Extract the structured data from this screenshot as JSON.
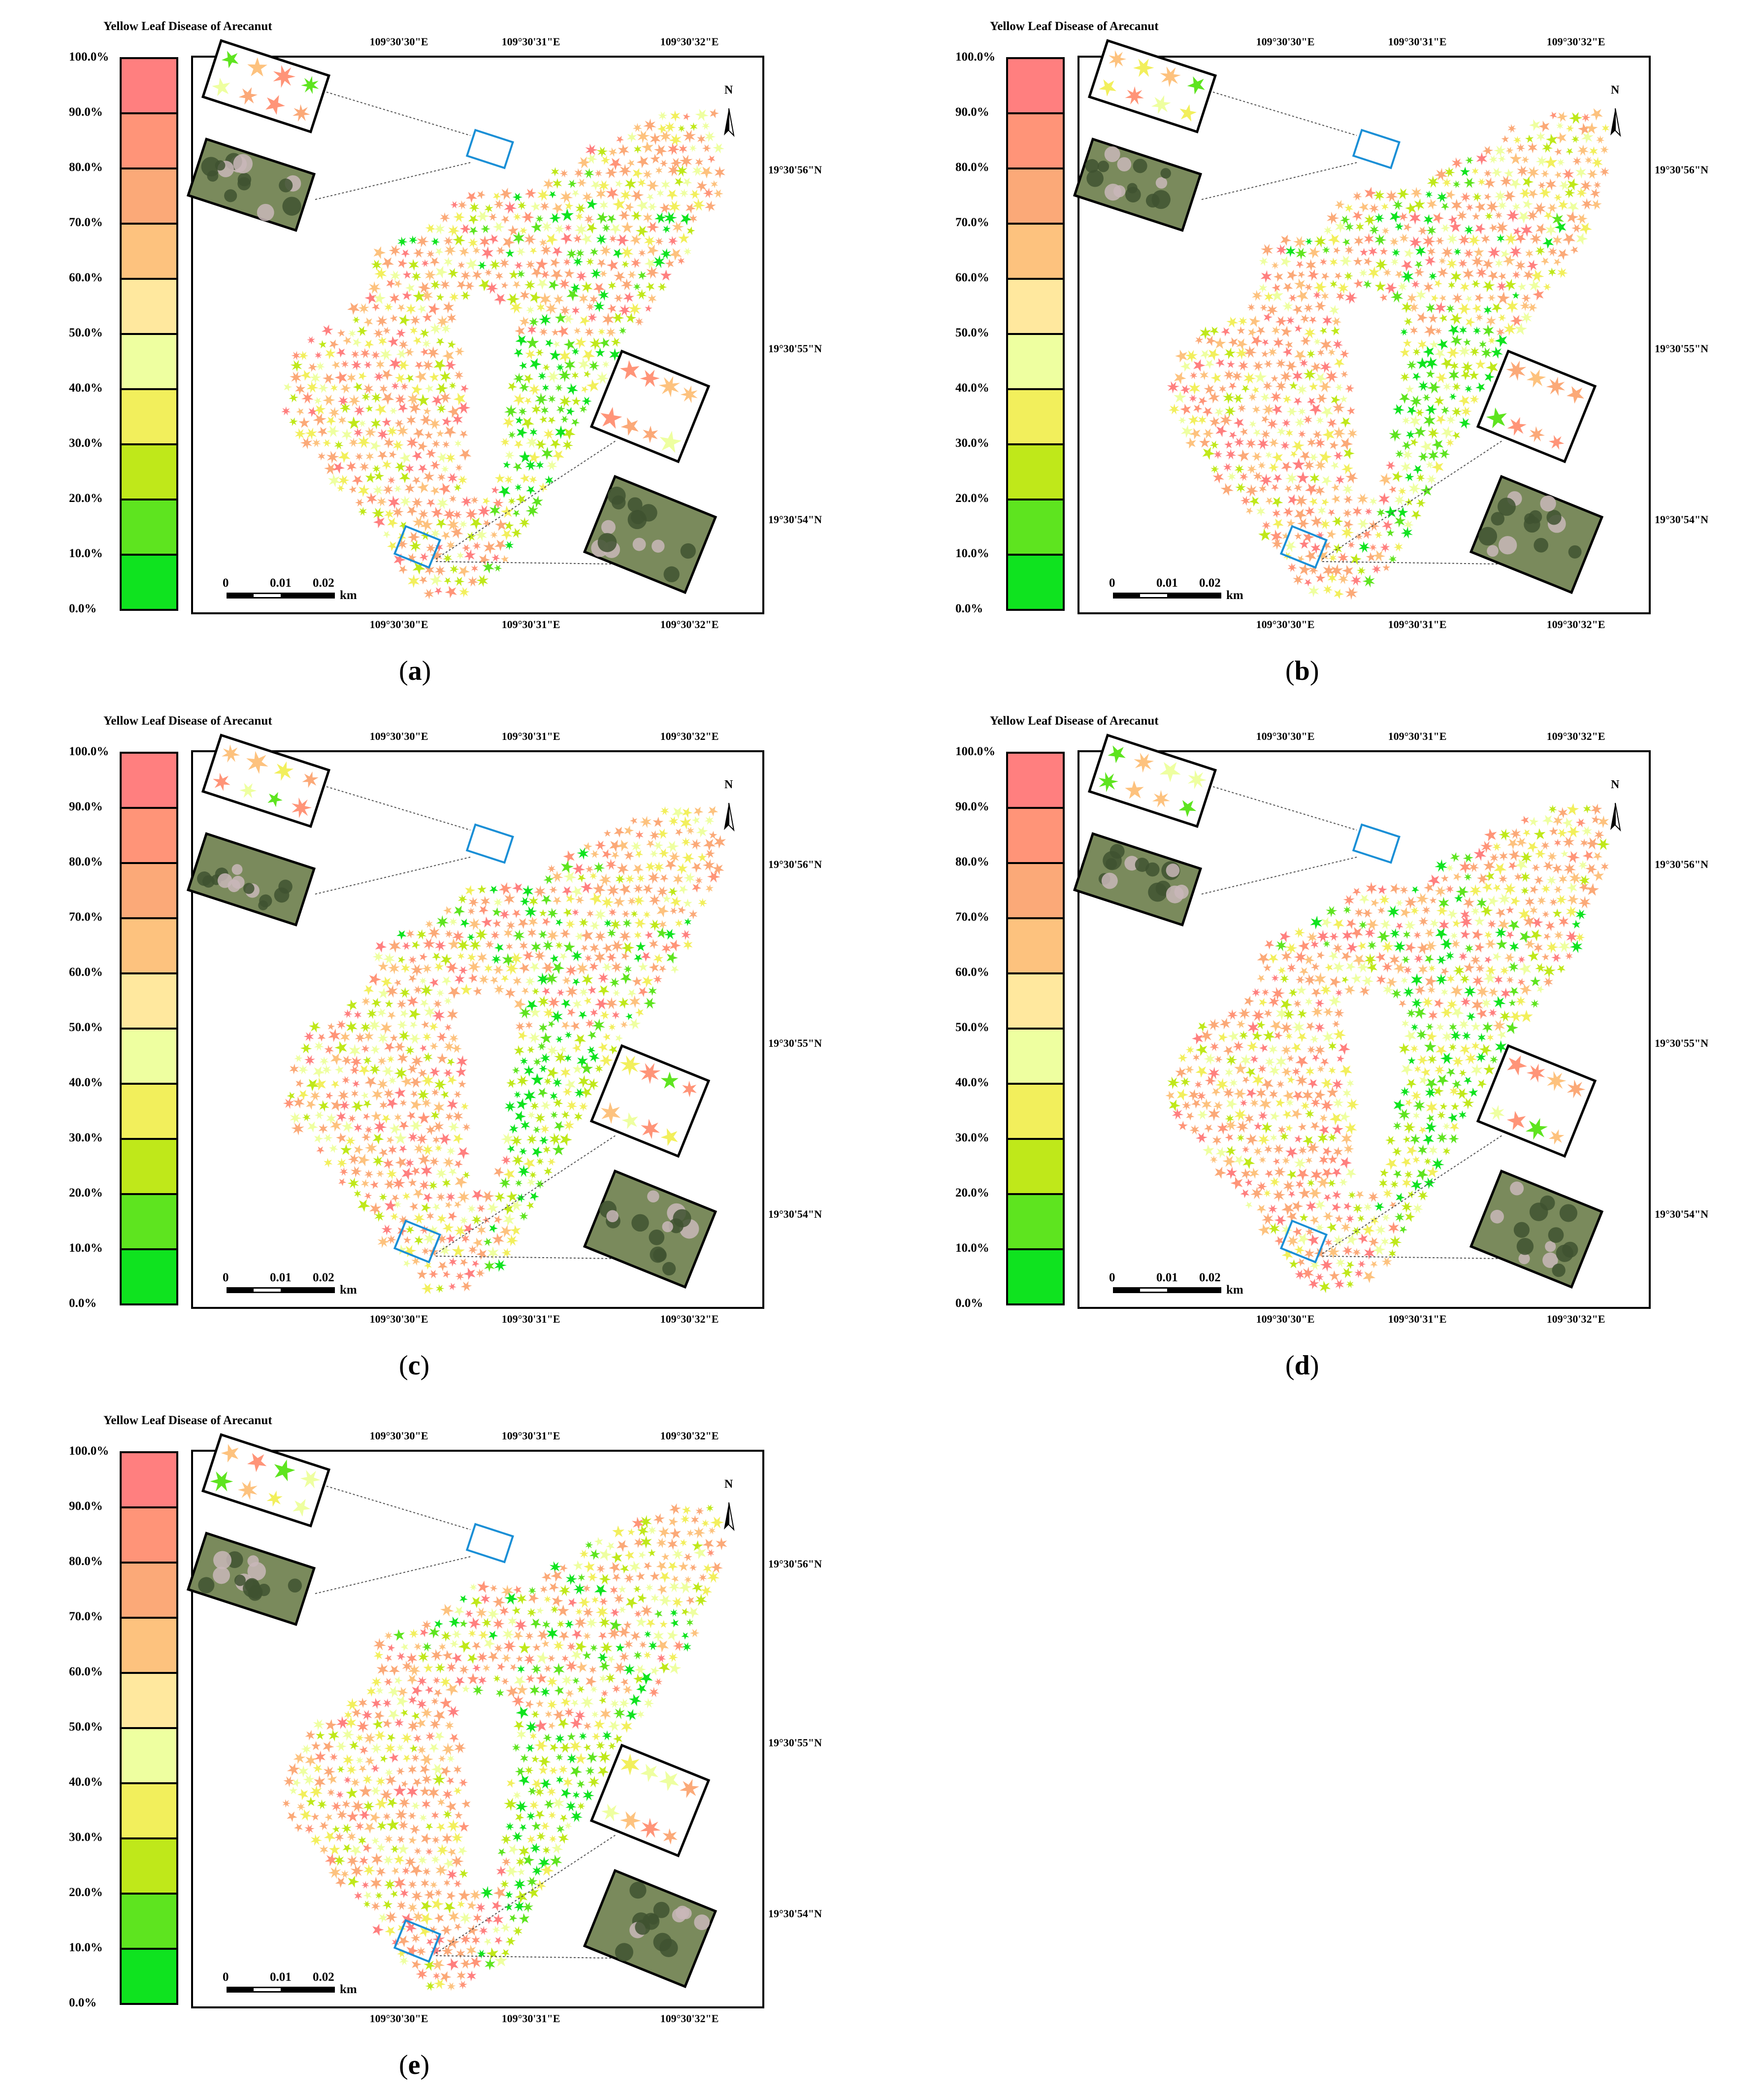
{
  "legend": {
    "title": "Yellow Leaf Disease of Arecanut",
    "ticks": [
      "100.0%",
      "90.0%",
      "80.0%",
      "70.0%",
      "60.0%",
      "50.0%",
      "40.0%",
      "30.0%",
      "20.0%",
      "10.0%",
      "0.0%"
    ],
    "class_colors": [
      "#ff7f7f",
      "#ff9478",
      "#fba978",
      "#fdc27e",
      "#ffe89e",
      "#eeffa0",
      "#f2ef5c",
      "#bfe81a",
      "#5ee41f",
      "#0fe31f"
    ]
  },
  "map_labels": {
    "longitudes": [
      "109°30'30\"E",
      "109°30'31\"E",
      "109°30'32\"E"
    ],
    "latitudes": [
      "19°30'56\"N",
      "19°30'55\"N",
      "19°30'54\"N"
    ],
    "north": "N",
    "scale": {
      "ticks": [
        "0",
        "0.01",
        "0.02"
      ],
      "unit": "km"
    }
  },
  "panels": [
    {
      "label": "a",
      "seed": 11
    },
    {
      "label": "b",
      "seed": 23
    },
    {
      "label": "c",
      "seed": 37
    },
    {
      "label": "d",
      "seed": 41
    },
    {
      "label": "e",
      "seed": 59
    }
  ],
  "colors": {
    "frame": "#000000",
    "highlight_box": "#1a8fd6",
    "photo_base": "#7a8a5c",
    "photo_dark": "#3f5230"
  }
}
